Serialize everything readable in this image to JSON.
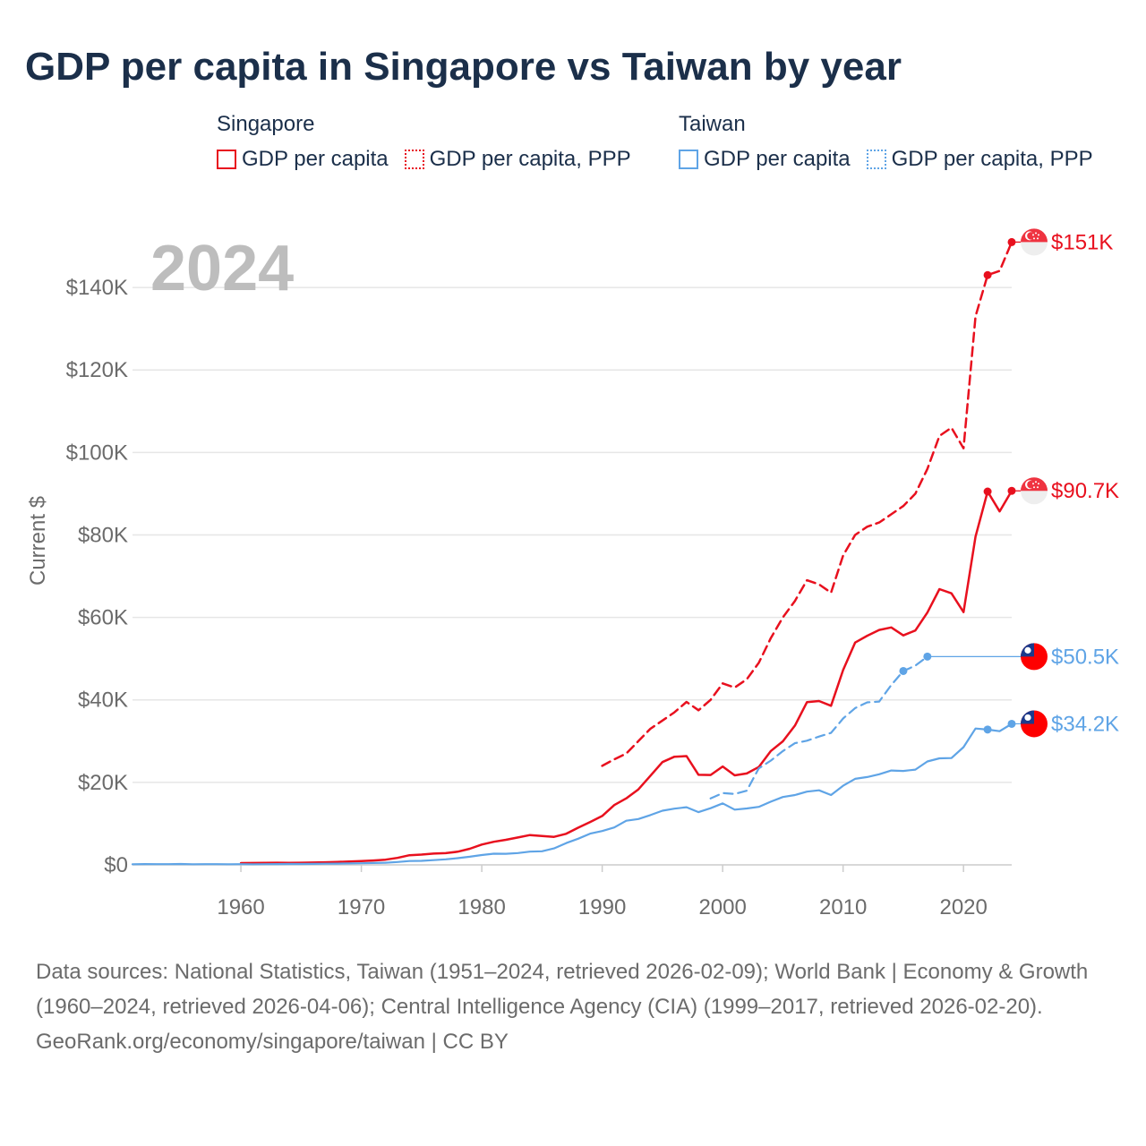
{
  "title": "GDP per capita in Singapore vs Taiwan by year",
  "legend": {
    "singapore": {
      "name": "Singapore",
      "items": [
        "GDP per capita",
        "GDP per capita, PPP"
      ]
    },
    "taiwan": {
      "name": "Taiwan",
      "items": [
        "GDP per capita",
        "GDP per capita, PPP"
      ]
    }
  },
  "colors": {
    "singapore": "#e8101e",
    "taiwan": "#5fa4e6"
  },
  "footer": {
    "sources": "Data sources: National Statistics, Taiwan (1951–2024, retrieved 2026-02-09); World Bank | Economy & Growth (1960–2024, retrieved 2026-04-06); Central Intelligence Agency (CIA) (1999–2017, retrieved 2026-02-20).",
    "credit": "GeoRank.org/economy/singapore/taiwan | CC BY"
  },
  "chart_data": {
    "type": "line",
    "year_label": "2024",
    "ylabel": "Current $",
    "xlim": [
      1951,
      2024
    ],
    "ylim": [
      0,
      150000
    ],
    "x_ticks": [
      1960,
      1970,
      1980,
      1990,
      2000,
      2010,
      2020
    ],
    "y_ticks": [
      {
        "value": 0,
        "label": "$0"
      },
      {
        "value": 20000,
        "label": "$20K"
      },
      {
        "value": 40000,
        "label": "$40K"
      },
      {
        "value": 60000,
        "label": "$60K"
      },
      {
        "value": 80000,
        "label": "$80K"
      },
      {
        "value": 100000,
        "label": "$100K"
      },
      {
        "value": 120000,
        "label": "$120K"
      },
      {
        "value": 140000,
        "label": "$140K"
      }
    ],
    "series": [
      {
        "name": "Singapore GDP per capita, PPP",
        "country": "singapore",
        "style": "dashed",
        "end_label": "$151K",
        "x": [
          1990,
          1991,
          1992,
          1993,
          1994,
          1995,
          1996,
          1997,
          1998,
          1999,
          2000,
          2001,
          2002,
          2003,
          2004,
          2005,
          2006,
          2007,
          2008,
          2009,
          2010,
          2011,
          2012,
          2013,
          2014,
          2015,
          2016,
          2017,
          2018,
          2019,
          2020,
          2021,
          2022,
          2023,
          2024
        ],
        "values": [
          24000,
          25600,
          27000,
          30000,
          33000,
          35000,
          37000,
          39500,
          37500,
          40000,
          44000,
          43000,
          45000,
          49000,
          55000,
          60000,
          64000,
          69000,
          68000,
          66000,
          75000,
          80000,
          82000,
          83000,
          85000,
          87000,
          90000,
          96000,
          104000,
          106000,
          101000,
          133000,
          143000,
          144000,
          151000
        ]
      },
      {
        "name": "Singapore GDP per capita",
        "country": "singapore",
        "style": "solid",
        "end_label": "$90.7K",
        "x": [
          1960,
          1961,
          1962,
          1963,
          1964,
          1965,
          1966,
          1967,
          1968,
          1969,
          1970,
          1971,
          1972,
          1973,
          1974,
          1975,
          1976,
          1977,
          1978,
          1979,
          1980,
          1981,
          1982,
          1983,
          1984,
          1985,
          1986,
          1987,
          1988,
          1989,
          1990,
          1991,
          1992,
          1993,
          1994,
          1995,
          1996,
          1997,
          1998,
          1999,
          2000,
          2001,
          2002,
          2003,
          2004,
          2005,
          2006,
          2007,
          2008,
          2009,
          2010,
          2011,
          2012,
          2013,
          2014,
          2015,
          2016,
          2017,
          2018,
          2019,
          2020,
          2021,
          2022,
          2023,
          2024
        ],
        "values": [
          428,
          449,
          472,
          511,
          485,
          517,
          567,
          626,
          709,
          813,
          925,
          1070,
          1264,
          1685,
          2342,
          2490,
          2746,
          2846,
          3194,
          3901,
          4928,
          5596,
          6078,
          6633,
          7235,
          7001,
          6799,
          7539,
          9017,
          10394,
          11862,
          14505,
          16136,
          18302,
          21578,
          24915,
          26233,
          26376,
          21829,
          21796,
          23852,
          21700,
          22160,
          23730,
          27608,
          29961,
          33769,
          39433,
          39722,
          38578,
          47237,
          53891,
          55546,
          56967,
          57563,
          55647,
          56828,
          61164,
          66859,
          65832,
          61274,
          79601,
          90522,
          85704,
          90689
        ]
      },
      {
        "name": "Taiwan GDP per capita, PPP",
        "country": "taiwan",
        "style": "dashed",
        "end_label": "$50.5K",
        "x": [
          1999,
          2000,
          2001,
          2002,
          2003,
          2004,
          2005,
          2006,
          2007,
          2008,
          2009,
          2010,
          2011,
          2012,
          2013,
          2014,
          2015,
          2016,
          2017
        ],
        "values": [
          16100,
          17400,
          17200,
          18000,
          23400,
          25300,
          27600,
          29500,
          30100,
          31100,
          32000,
          35500,
          38000,
          39400,
          39600,
          43600,
          47000,
          48300,
          50500
        ]
      },
      {
        "name": "Taiwan GDP per capita",
        "country": "taiwan",
        "style": "solid",
        "end_label": "$34.2K",
        "x": [
          1951,
          1952,
          1953,
          1954,
          1955,
          1956,
          1957,
          1958,
          1959,
          1960,
          1961,
          1962,
          1963,
          1964,
          1965,
          1966,
          1967,
          1968,
          1969,
          1970,
          1971,
          1972,
          1973,
          1974,
          1975,
          1976,
          1977,
          1978,
          1979,
          1980,
          1981,
          1982,
          1983,
          1984,
          1985,
          1986,
          1987,
          1988,
          1989,
          1990,
          1991,
          1992,
          1993,
          1994,
          1995,
          1996,
          1997,
          1998,
          1999,
          2000,
          2001,
          2002,
          2003,
          2004,
          2005,
          2006,
          2007,
          2008,
          2009,
          2010,
          2011,
          2012,
          2013,
          2014,
          2015,
          2016,
          2017,
          2018,
          2019,
          2020,
          2021,
          2022,
          2023,
          2024
        ],
        "values": [
          154,
          186,
          177,
          180,
          213,
          149,
          165,
          174,
          154,
          165,
          155,
          171,
          193,
          219,
          223,
          244,
          277,
          313,
          352,
          397,
          449,
          525,
          702,
          938,
          976,
          1158,
          1349,
          1618,
          1974,
          2389,
          2715,
          2693,
          2875,
          3204,
          3297,
          3993,
          5275,
          6333,
          7577,
          8205,
          9081,
          10710,
          11124,
          12070,
          13129,
          13633,
          13978,
          12787,
          13745,
          14908,
          13397,
          13686,
          14066,
          15317,
          16456,
          16934,
          17757,
          18081,
          16933,
          19181,
          20866,
          21295,
          21973,
          22874,
          22780,
          23091,
          25080,
          25838,
          25908,
          28549,
          33059,
          32811,
          32404,
          34200
        ]
      }
    ]
  }
}
